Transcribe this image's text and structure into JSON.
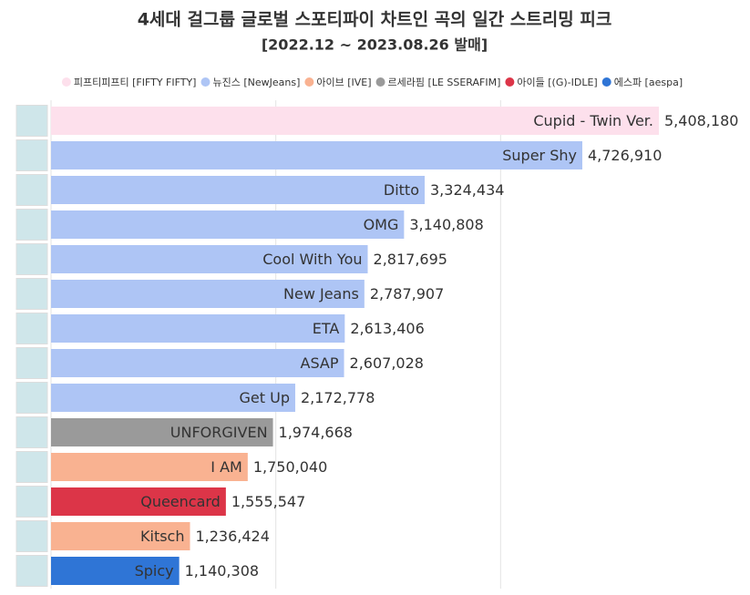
{
  "chart_data": {
    "type": "hbar",
    "title": "4세대 걸그룹 글로벌 스포티파이 차트인 곡의 일간 스트리밍 피크",
    "subtitle": "[2022.12 ~ 2023.08.26 발매]",
    "categories": [
      "Cupid - Twin Ver.",
      "Super Shy",
      "Ditto",
      "OMG",
      "Cool With You",
      "New Jeans",
      "ETA",
      "ASAP",
      "Get Up",
      "UNFORGIVEN",
      "I AM",
      "Queencard",
      "Kitsch",
      "Spicy"
    ],
    "series": [
      {
        "name": "피프티피프티 [FIFTY FIFTY]",
        "color": "#fde0ec",
        "values": [
          5408180,
          null,
          null,
          null,
          null,
          null,
          null,
          null,
          null,
          null,
          null,
          null,
          null,
          null
        ],
        "value_labels": [
          "5,408,180",
          null,
          null,
          null,
          null,
          null,
          null,
          null,
          null,
          null,
          null,
          null,
          null,
          null
        ]
      },
      {
        "name": "뉴진스 [NewJeans]",
        "color": "#aec5f5",
        "values": [
          null,
          4726910,
          3324434,
          3140808,
          2817695,
          2787907,
          2613406,
          2607028,
          2172778,
          null,
          null,
          null,
          null,
          null
        ],
        "value_labels": [
          null,
          "4,726,910",
          "3,324,434",
          "3,140,808",
          "2,817,695",
          "2,787,907",
          "2,613,406",
          "2,607,028",
          "2,172,778",
          null,
          null,
          null,
          null,
          null
        ]
      },
      {
        "name": "아이브 [IVE]",
        "color": "#f9b291",
        "values": [
          null,
          null,
          null,
          null,
          null,
          null,
          null,
          null,
          null,
          null,
          1750040,
          null,
          1236424,
          null
        ],
        "value_labels": [
          null,
          null,
          null,
          null,
          null,
          null,
          null,
          null,
          null,
          null,
          "1,750,040",
          null,
          "1,236,424",
          null
        ]
      },
      {
        "name": "르세라핌 [LE SSERAFIM]",
        "color": "#9a9a9a",
        "values": [
          null,
          null,
          null,
          null,
          null,
          null,
          null,
          null,
          null,
          1974668,
          null,
          null,
          null,
          null
        ],
        "value_labels": [
          null,
          null,
          null,
          null,
          null,
          null,
          null,
          null,
          null,
          "1,974,668",
          null,
          null,
          null,
          null
        ]
      },
      {
        "name": "아이들 [(G)-IDLE]",
        "color": "#dc3548",
        "values": [
          null,
          null,
          null,
          null,
          null,
          null,
          null,
          null,
          null,
          null,
          null,
          1555547,
          null,
          null
        ],
        "value_labels": [
          null,
          null,
          null,
          null,
          null,
          null,
          null,
          null,
          null,
          null,
          null,
          "1,555,547",
          null,
          null
        ]
      },
      {
        "name": "에스파 [aespa]",
        "color": "#2f75d6",
        "values": [
          null,
          null,
          null,
          null,
          null,
          null,
          null,
          null,
          null,
          null,
          null,
          null,
          null,
          1140308
        ],
        "value_labels": [
          null,
          null,
          null,
          null,
          null,
          null,
          null,
          null,
          null,
          null,
          null,
          null,
          null,
          "1,140,308"
        ]
      }
    ],
    "xlim": [
      0,
      6000000
    ],
    "xticks": [
      0,
      2000000,
      4000000
    ],
    "grid": true
  }
}
